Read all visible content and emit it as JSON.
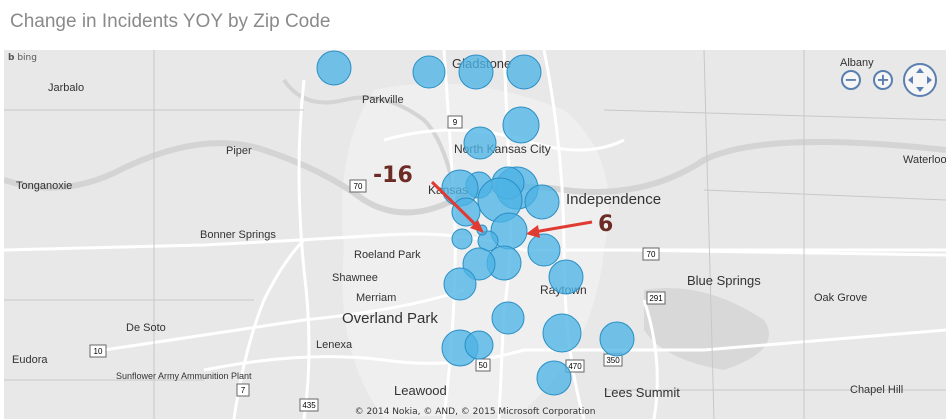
{
  "title": "Change in Incidents YOY by Zip Code",
  "provider": "bing",
  "copyright": "© 2014 Nokia, © AND, © 2015 Microsoft Corporation",
  "controls": {
    "zoom_out": "−",
    "zoom_in": "+",
    "pan": "pan"
  },
  "places": [
    {
      "name": "Gladstone",
      "size": "medium"
    },
    {
      "name": "Albany",
      "size": "small"
    },
    {
      "name": "Jarbalo",
      "size": "small"
    },
    {
      "name": "Parkville",
      "size": "small"
    },
    {
      "name": "Piper",
      "size": "small"
    },
    {
      "name": "North Kansas City",
      "size": "medium"
    },
    {
      "name": "Waterloo",
      "size": "small"
    },
    {
      "name": "Tonganoxie",
      "size": "small"
    },
    {
      "name": "Kansas",
      "size": "medium"
    },
    {
      "name": "Independence",
      "size": "large"
    },
    {
      "name": "Bonner Springs",
      "size": "small"
    },
    {
      "name": "Roeland Park",
      "size": "small"
    },
    {
      "name": "Shawnee",
      "size": "small"
    },
    {
      "name": "Merriam",
      "size": "small"
    },
    {
      "name": "Raytown",
      "size": "medium"
    },
    {
      "name": "Blue Springs",
      "size": "medium"
    },
    {
      "name": "Oak Grove",
      "size": "small"
    },
    {
      "name": "De Soto",
      "size": "small"
    },
    {
      "name": "Overland Park",
      "size": "large"
    },
    {
      "name": "Lenexa",
      "size": "small"
    },
    {
      "name": "Eudora",
      "size": "small"
    },
    {
      "name": "Sunflower Army Ammunition Plant",
      "size": "small"
    },
    {
      "name": "Leawood",
      "size": "medium"
    },
    {
      "name": "Lees Summit",
      "size": "medium"
    },
    {
      "name": "Chapel Hill",
      "size": "small"
    }
  ],
  "highway_shields": [
    "9",
    "70",
    "70",
    "10",
    "291",
    "50",
    "350",
    "470",
    "7",
    "435"
  ],
  "annotations": [
    {
      "label": "-16",
      "color": "#e03b33"
    },
    {
      "label": "6",
      "color": "#e03b33"
    }
  ],
  "bubble_color": "#4db4e6",
  "bubble_stroke": "#2b8fc4"
}
